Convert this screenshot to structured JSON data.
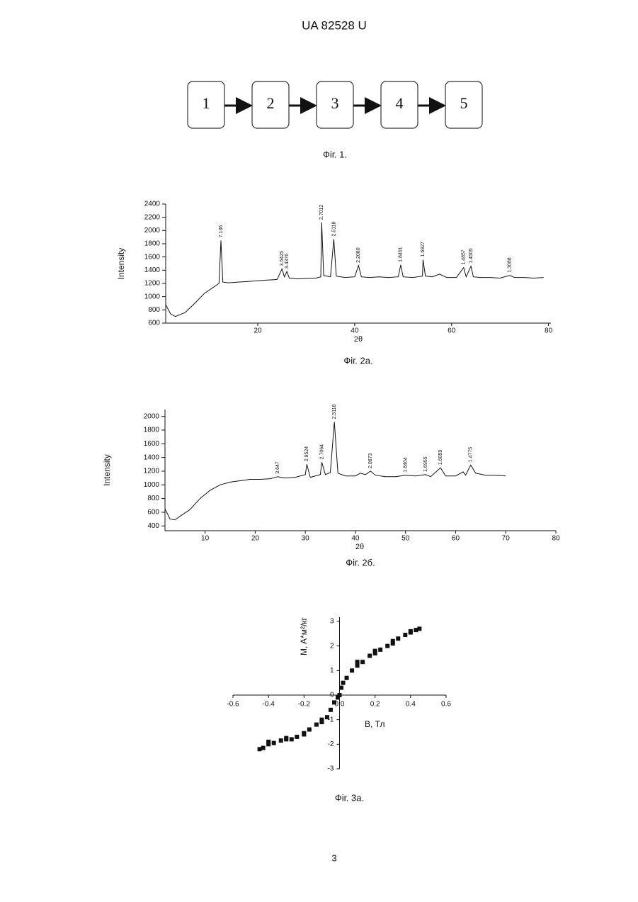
{
  "header": "UA   82528   U",
  "figure1": {
    "nodes": [
      {
        "label": "1"
      },
      {
        "label": "2"
      },
      {
        "label": "3"
      },
      {
        "label": "4"
      },
      {
        "label": "5"
      }
    ],
    "caption": "Фіг. 1."
  },
  "chart_data": [
    {
      "type": "line",
      "caption": "Фіг. 2а.",
      "x_label": "2θ",
      "y_label": "Intensity",
      "color": "#111111",
      "xlim": [
        1,
        80.5
      ],
      "xticks": [
        20,
        40,
        60,
        80
      ],
      "ylim": [
        600,
        2400
      ],
      "yticks": [
        600,
        800,
        1000,
        1200,
        1400,
        1600,
        1800,
        2000,
        2200,
        2400
      ],
      "x": [
        1,
        2,
        3,
        5,
        7,
        9,
        11,
        12,
        12.4,
        12.8,
        14,
        16,
        18,
        20,
        22,
        24,
        25,
        25.5,
        26,
        26.5,
        28,
        30,
        32,
        33,
        33.2,
        33.6,
        35,
        35.7,
        36.2,
        38,
        40,
        40.8,
        41.4,
        43,
        45,
        47,
        49,
        49.5,
        50,
        52,
        54,
        54.1,
        54.6,
        56,
        57.5,
        59,
        61,
        62.5,
        63,
        64,
        64.5,
        66,
        68,
        70,
        72,
        73,
        75,
        77,
        79
      ],
      "values": [
        880,
        740,
        700,
        760,
        900,
        1050,
        1150,
        1200,
        1850,
        1220,
        1210,
        1220,
        1230,
        1240,
        1250,
        1260,
        1420,
        1300,
        1380,
        1280,
        1270,
        1275,
        1280,
        1300,
        2120,
        1320,
        1300,
        1870,
        1310,
        1290,
        1300,
        1470,
        1300,
        1290,
        1300,
        1290,
        1300,
        1480,
        1300,
        1290,
        1310,
        1560,
        1310,
        1300,
        1340,
        1290,
        1290,
        1440,
        1300,
        1460,
        1300,
        1290,
        1290,
        1280,
        1320,
        1290,
        1290,
        1280,
        1290
      ],
      "annotations": [
        {
          "x": 12.4,
          "label": "7.136"
        },
        {
          "x": 25,
          "label": "3.5425"
        },
        {
          "x": 26,
          "label": "3.4376"
        },
        {
          "x": 33.2,
          "label": "2.7012"
        },
        {
          "x": 35.7,
          "label": "2.5118"
        },
        {
          "x": 40.8,
          "label": "2.2080"
        },
        {
          "x": 49.5,
          "label": "1.8401"
        },
        {
          "x": 54.1,
          "label": "1.6927"
        },
        {
          "x": 62.5,
          "label": "1.4857"
        },
        {
          "x": 64,
          "label": "1.4505"
        },
        {
          "x": 72,
          "label": "1.3088"
        }
      ]
    },
    {
      "type": "line",
      "caption": "Фіг. 2б.",
      "x_label": "2θ",
      "y_label": "Intensity",
      "color": "#111111",
      "xlim": [
        2,
        80
      ],
      "xticks": [
        10,
        20,
        30,
        40,
        50,
        60,
        70,
        80
      ],
      "ylim": [
        330,
        2100
      ],
      "yticks": [
        400,
        600,
        800,
        1000,
        1200,
        1400,
        1600,
        1800,
        2000
      ],
      "x": [
        2,
        3,
        4,
        5,
        7,
        9,
        11,
        13,
        15,
        17,
        19,
        21,
        23,
        24.5,
        26,
        28,
        30,
        30.3,
        31,
        33,
        33.3,
        34,
        35,
        35.8,
        36.5,
        38,
        40,
        41,
        42,
        43,
        44,
        46,
        48,
        50,
        52,
        54,
        55,
        57,
        58,
        60,
        61.5,
        62,
        63,
        64,
        66,
        68,
        70
      ],
      "values": [
        650,
        500,
        490,
        540,
        640,
        800,
        920,
        1000,
        1040,
        1060,
        1080,
        1080,
        1090,
        1120,
        1100,
        1110,
        1150,
        1300,
        1110,
        1150,
        1330,
        1150,
        1180,
        1920,
        1170,
        1130,
        1130,
        1170,
        1150,
        1200,
        1140,
        1120,
        1120,
        1140,
        1130,
        1150,
        1120,
        1250,
        1130,
        1130,
        1190,
        1140,
        1290,
        1170,
        1140,
        1140,
        1130
      ],
      "annotations": [
        {
          "x": 24.5,
          "label": "3.647"
        },
        {
          "x": 30.3,
          "label": "2.9524"
        },
        {
          "x": 33.3,
          "label": "2.7064"
        },
        {
          "x": 35.8,
          "label": "2.5118"
        },
        {
          "x": 43,
          "label": "2.0873"
        },
        {
          "x": 50,
          "label": "1.8404"
        },
        {
          "x": 54,
          "label": "1.6955"
        },
        {
          "x": 57,
          "label": "1.6059"
        },
        {
          "x": 63,
          "label": "1.4775"
        }
      ]
    },
    {
      "type": "scatter",
      "caption": "Фіг. 3а.",
      "x_label": "B, Тл",
      "y_label": "M, A*м²/кг",
      "color": "#111111",
      "xlim": [
        -0.6,
        0.6
      ],
      "xticks": [
        -0.6,
        -0.4,
        -0.2,
        {
          "value": 0,
          "label": "0.0"
        },
        0.2,
        0.4,
        0.6
      ],
      "ylim": [
        -3,
        3
      ],
      "yticks": [
        -3,
        -2,
        -1,
        0,
        1,
        2,
        3
      ],
      "x": [
        -0.45,
        -0.43,
        -0.4,
        -0.37,
        -0.33,
        -0.3,
        -0.27,
        -0.24,
        -0.2,
        -0.17,
        -0.13,
        -0.1,
        -0.07,
        -0.05,
        -0.03,
        -0.01,
        0,
        0.01,
        0.02,
        0.04,
        0.07,
        0.1,
        0.13,
        0.17,
        0.2,
        0.23,
        0.27,
        0.3,
        0.33,
        0.37,
        0.4,
        0.43,
        0.45,
        -0.4,
        -0.3,
        -0.2,
        -0.1,
        0.1,
        0.2,
        0.3,
        0.4
      ],
      "values": [
        -2.2,
        -2.15,
        -2.0,
        -1.95,
        -1.85,
        -1.8,
        -1.8,
        -1.7,
        -1.55,
        -1.4,
        -1.2,
        -1.0,
        -0.9,
        -0.6,
        -0.3,
        -0.1,
        0,
        0.3,
        0.5,
        0.7,
        1.0,
        1.2,
        1.35,
        1.6,
        1.7,
        1.85,
        2.0,
        2.2,
        2.3,
        2.45,
        2.6,
        2.65,
        2.7,
        -1.9,
        -1.75,
        -1.6,
        -1.1,
        1.35,
        1.8,
        2.1,
        2.55
      ]
    }
  ],
  "page_number": "3"
}
